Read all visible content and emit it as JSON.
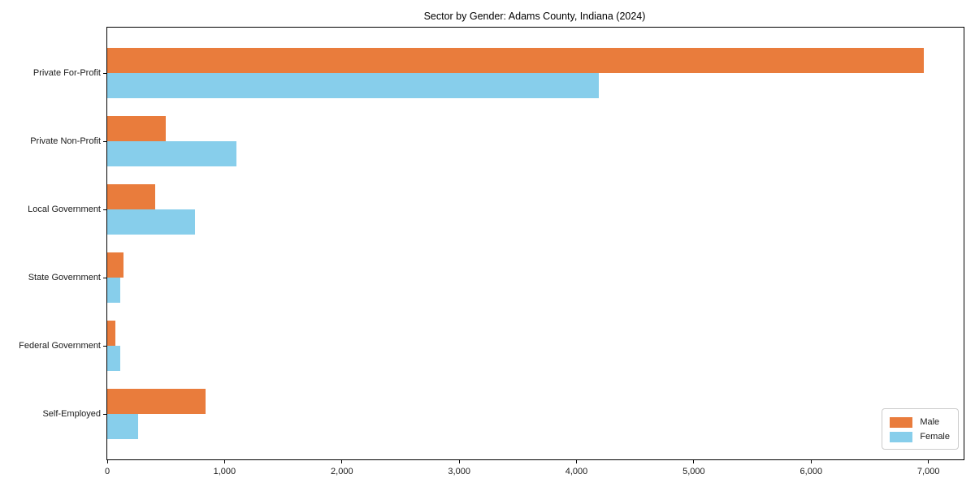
{
  "title": "Sector by Gender: Adams County, Indiana (2024)",
  "chart_data": {
    "type": "bar",
    "orientation": "horizontal",
    "title": "Sector by Gender: Adams County, Indiana (2024)",
    "xlabel": "",
    "ylabel": "",
    "categories": [
      "Private For-Profit",
      "Private Non-Profit",
      "Local Government",
      "State Government",
      "Federal Government",
      "Self-Employed"
    ],
    "series": [
      {
        "name": "Male",
        "color": "#E97C3C",
        "values": [
          6960,
          500,
          405,
          140,
          70,
          835
        ]
      },
      {
        "name": "Female",
        "color": "#87CEEB",
        "values": [
          4190,
          1100,
          745,
          110,
          110,
          265
        ]
      }
    ],
    "xlim": [
      0,
      7300
    ],
    "x_ticks": [
      0,
      1000,
      2000,
      3000,
      4000,
      5000,
      6000,
      7000
    ],
    "x_tick_labels": [
      "0",
      "1,000",
      "2,000",
      "3,000",
      "4,000",
      "5,000",
      "6,000",
      "7,000"
    ],
    "grid": false,
    "legend": {
      "position": "lower right",
      "entries": [
        "Male",
        "Female"
      ]
    }
  },
  "colors": {
    "male": "#E97C3C",
    "female": "#87CEEB",
    "spine": "#000000",
    "text": "#1a1a1a",
    "background": "#ffffff"
  }
}
